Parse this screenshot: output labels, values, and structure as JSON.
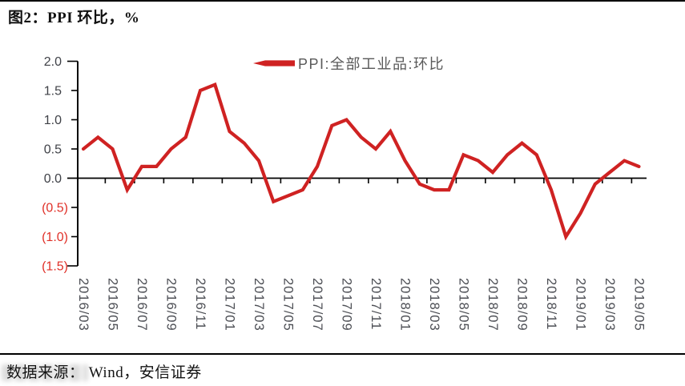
{
  "title": "图2：PPI 环比，%",
  "source_note": "数据来源： Wind，安信证券",
  "chart_data": {
    "type": "line",
    "title": "图2：PPI 环比，%",
    "legend": "PPI:全部工业品:环比",
    "legend_position": "top-center",
    "grid": false,
    "xlabel": "",
    "ylabel": "",
    "ylim": [
      -1.5,
      2.0
    ],
    "y_ticks": [
      2.0,
      1.5,
      1.0,
      0.5,
      0.0,
      -0.5,
      -1.0,
      -1.5
    ],
    "y_tick_labels": [
      "2.0",
      "1.5",
      "1.0",
      "0.5",
      "0.0",
      "(0.5)",
      "(1.0)",
      "(1.5)"
    ],
    "x_tick_labels": [
      "2016/03",
      "2016/05",
      "2016/07",
      "2016/09",
      "2016/11",
      "2017/01",
      "2017/03",
      "2017/05",
      "2017/07",
      "2017/09",
      "2017/11",
      "2018/01",
      "2018/03",
      "2018/05",
      "2018/07",
      "2018/09",
      "2018/11",
      "2019/01",
      "2019/03",
      "2019/05"
    ],
    "series": [
      {
        "name": "PPI:全部工业品:环比",
        "color": "#cf2222",
        "x": [
          "2016/03",
          "2016/04",
          "2016/05",
          "2016/06",
          "2016/07",
          "2016/08",
          "2016/09",
          "2016/10",
          "2016/11",
          "2016/12",
          "2017/01",
          "2017/02",
          "2017/03",
          "2017/04",
          "2017/05",
          "2017/06",
          "2017/07",
          "2017/08",
          "2017/09",
          "2017/10",
          "2017/11",
          "2017/12",
          "2018/01",
          "2018/02",
          "2018/03",
          "2018/04",
          "2018/05",
          "2018/06",
          "2018/07",
          "2018/08",
          "2018/09",
          "2018/10",
          "2018/11",
          "2018/12",
          "2019/01",
          "2019/02",
          "2019/03",
          "2019/04",
          "2019/05"
        ],
        "values": [
          0.5,
          0.7,
          0.5,
          -0.2,
          0.2,
          0.2,
          0.5,
          0.7,
          1.5,
          1.6,
          0.8,
          0.6,
          0.3,
          -0.4,
          -0.3,
          -0.2,
          0.2,
          0.9,
          1.0,
          0.7,
          0.5,
          0.8,
          0.3,
          -0.1,
          -0.2,
          -0.2,
          0.4,
          0.3,
          0.1,
          0.4,
          0.6,
          0.4,
          -0.2,
          -1.0,
          -0.6,
          -0.1,
          0.1,
          0.3,
          0.2
        ]
      }
    ],
    "colors": {
      "axis": "#000000",
      "positive_tick_label": "#3f4147",
      "negative_tick_label": "#e03028",
      "x_tick_label": "#4c4e54",
      "legend_text": "#595959"
    }
  }
}
